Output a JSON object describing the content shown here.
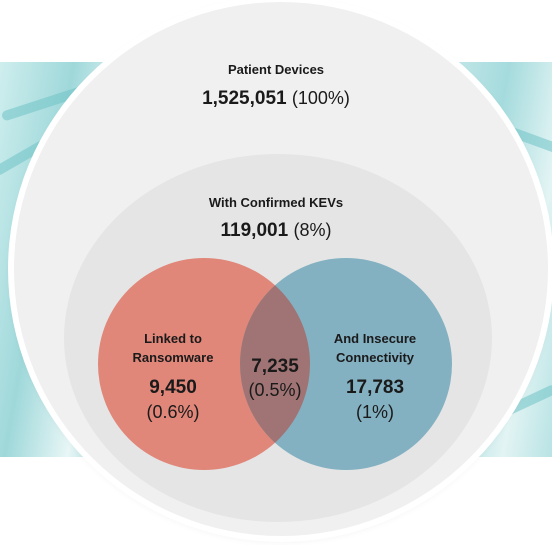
{
  "total": {
    "label": "Patient Devices",
    "count": "1,525,051",
    "pct": "(100%)"
  },
  "kev": {
    "label": "With Confirmed KEVs",
    "count": "119,001",
    "pct": "(8%)"
  },
  "ransomware": {
    "label_line1": "Linked to",
    "label_line2": "Ransomware",
    "count": "9,450",
    "pct": "(0.6%)"
  },
  "connectivity": {
    "label_line1": "And Insecure",
    "label_line2": "Connectivity",
    "count": "17,783",
    "pct": "(1%)"
  },
  "overlap": {
    "count": "7,235",
    "pct": "(0.5%)"
  },
  "colors": {
    "ransomware": "#e0877a",
    "connectivity": "#7badbf",
    "overlap": "#a07474",
    "outer": "#f0f0f0",
    "inner": "#e5e5e5"
  }
}
